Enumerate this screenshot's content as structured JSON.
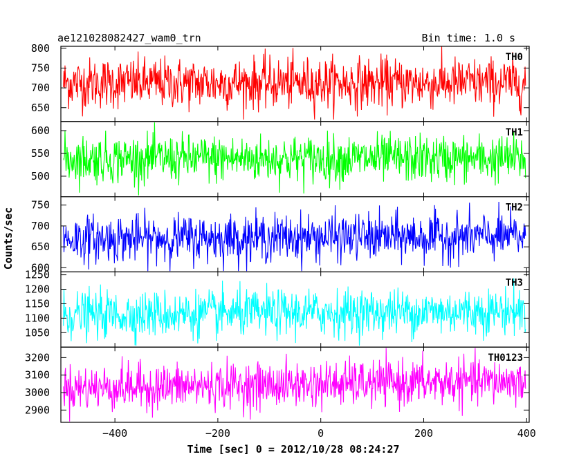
{
  "header": {
    "title": "ae121028082427_wam0_trn",
    "bin_time": "Bin time: 1.0 s"
  },
  "chart_data": {
    "type": "line",
    "xlabel": "Time [sec] 0 = 2012/10/28 08:24:27",
    "ylabel": "Counts/sec",
    "xlim": [
      -505,
      405
    ],
    "x_ticks": [
      -400,
      -200,
      0,
      200,
      400
    ],
    "x_range": [
      -500,
      398
    ],
    "bin_time_s": 1.0,
    "panels": [
      {
        "name": "TH0",
        "color": "#ff0000",
        "ylim": [
          615,
          805
        ],
        "y_ticks": [
          650,
          700,
          750,
          800
        ],
        "mean": 712,
        "sigma": 32,
        "trend": 0,
        "series_min": 620,
        "series_max": 805
      },
      {
        "name": "TH1",
        "color": "#00ff00",
        "ylim": [
          455,
          620
        ],
        "y_ticks": [
          500,
          550,
          600
        ],
        "mean": 538,
        "sigma": 26,
        "trend": 0,
        "series_min": 458,
        "series_max": 618
      },
      {
        "name": "TH2",
        "color": "#0000ff",
        "ylim": [
          590,
          770
        ],
        "y_ticks": [
          600,
          650,
          700,
          750
        ],
        "mean": 672,
        "sigma": 28,
        "trend": 6,
        "series_min": 592,
        "series_max": 768
      },
      {
        "name": "TH3",
        "color": "#00ffff",
        "ylim": [
          1000,
          1260
        ],
        "y_ticks": [
          1050,
          1100,
          1150,
          1200,
          1250
        ],
        "mean": 1118,
        "sigma": 40,
        "trend": 15,
        "series_min": 1005,
        "series_max": 1258
      },
      {
        "name": "TH0123",
        "color": "#ff00ff",
        "ylim": [
          2830,
          3260
        ],
        "y_ticks": [
          2900,
          3000,
          3100,
          3200
        ],
        "mean": 3045,
        "sigma": 65,
        "trend": 40,
        "series_min": 2835,
        "series_max": 3255
      }
    ]
  }
}
